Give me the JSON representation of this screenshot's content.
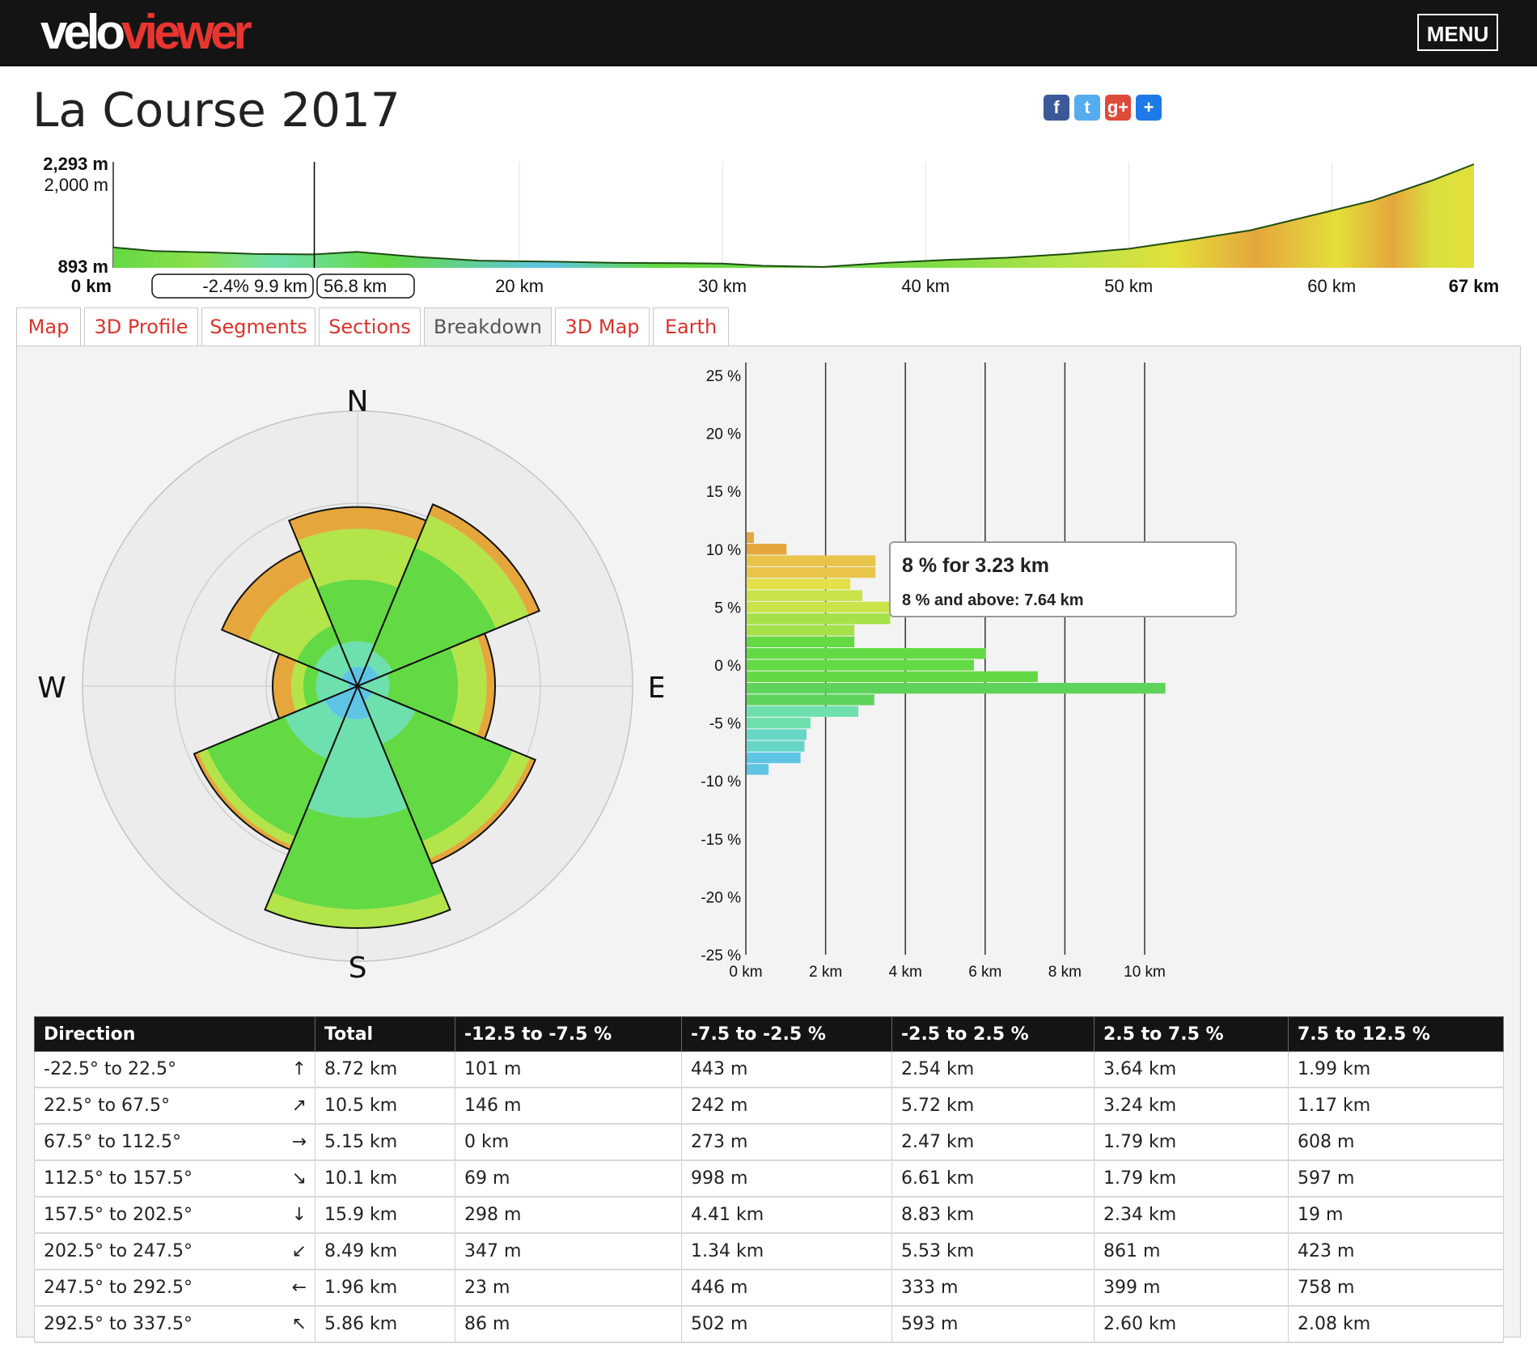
{
  "header": {
    "logo_part1": "velo",
    "logo_part2": "viewer",
    "menu_label": "MENU"
  },
  "page_title": "La Course 2017",
  "share": [
    {
      "name": "facebook-share-button",
      "glyph": "f",
      "color": "#3b5998"
    },
    {
      "name": "twitter-share-button",
      "glyph": "t",
      "color": "#55acee"
    },
    {
      "name": "google-plus-share-button",
      "glyph": "g+",
      "color": "#dd4b39"
    },
    {
      "name": "add-share-button",
      "glyph": "+",
      "color": "#1e7ae6"
    }
  ],
  "profile": {
    "y_max_label": "2,293 m",
    "y_mid_label": "2,000 m",
    "y_min_label": "893 m",
    "x_ticks": [
      "0 km",
      "20 km",
      "30 km",
      "40 km",
      "50 km",
      "60 km",
      "67 km"
    ],
    "selection_left_label": "-2.4% 9.9 km",
    "selection_right_label": "56.8 km",
    "elevation_min": 893,
    "elevation_max": 2293,
    "distance_km": 67,
    "marker_km": 9.9,
    "profile_points": [
      [
        0,
        1170
      ],
      [
        2,
        1120
      ],
      [
        5,
        1100
      ],
      [
        7,
        1080
      ],
      [
        9.9,
        1075
      ],
      [
        12,
        1110
      ],
      [
        15,
        1040
      ],
      [
        18,
        990
      ],
      [
        22,
        975
      ],
      [
        25,
        960
      ],
      [
        28,
        955
      ],
      [
        30,
        950
      ],
      [
        32,
        920
      ],
      [
        35,
        905
      ],
      [
        38,
        960
      ],
      [
        41,
        1000
      ],
      [
        44,
        1030
      ],
      [
        47,
        1080
      ],
      [
        50,
        1150
      ],
      [
        53,
        1270
      ],
      [
        56,
        1400
      ],
      [
        59,
        1600
      ],
      [
        62,
        1800
      ],
      [
        65,
        2080
      ],
      [
        67,
        2293
      ]
    ]
  },
  "tabs": [
    {
      "name": "tab-map",
      "label": "Map",
      "active": false
    },
    {
      "name": "tab-3d-profile",
      "label": "3D Profile",
      "active": false
    },
    {
      "name": "tab-segments",
      "label": "Segments",
      "active": false
    },
    {
      "name": "tab-sections",
      "label": "Sections",
      "active": false
    },
    {
      "name": "tab-breakdown",
      "label": "Breakdown",
      "active": true
    },
    {
      "name": "tab-3d-map",
      "label": "3D Map",
      "active": false
    },
    {
      "name": "tab-earth",
      "label": "Earth",
      "active": false
    }
  ],
  "compass": {
    "n": "N",
    "e": "E",
    "s": "S",
    "w": "W"
  },
  "colors": {
    "steep_down": "#5ec4e6",
    "down": "#6ee0ae",
    "flat": "#63d943",
    "up": "#b3e44a",
    "steep_up": "#e5a63c"
  },
  "chart_data": [
    {
      "type": "polar-bar",
      "description_directions": [
        "N",
        "NE",
        "E",
        "SE",
        "S",
        "SW",
        "W",
        "NW"
      ],
      "series": [
        {
          "name": "-12.5 to -7.5 %",
          "values_km": [
            0.101,
            0.146,
            0,
            0.069,
            0.298,
            0.347,
            0.023,
            0.086
          ]
        },
        {
          "name": "-7.5 to -2.5 %",
          "values_km": [
            0.443,
            0.242,
            0.273,
            0.998,
            4.41,
            1.34,
            0.446,
            0.502
          ]
        },
        {
          "name": "-2.5 to 2.5 %",
          "values_km": [
            2.54,
            5.72,
            2.47,
            6.61,
            8.83,
            5.53,
            0.333,
            0.593
          ]
        },
        {
          "name": "2.5 to 7.5 %",
          "values_km": [
            3.64,
            3.24,
            1.79,
            1.79,
            2.34,
            0.861,
            0.399,
            2.6
          ]
        },
        {
          "name": "7.5 to 12.5 %",
          "values_km": [
            1.99,
            1.17,
            0.608,
            0.597,
            0.019,
            0.423,
            0.758,
            2.08
          ]
        }
      ],
      "totals_km": [
        8.72,
        10.5,
        5.15,
        10.1,
        15.9,
        8.49,
        1.96,
        5.86
      ]
    },
    {
      "type": "bar",
      "orientation": "horizontal",
      "y_ticks": [
        "25 %",
        "20 %",
        "15 %",
        "10 %",
        "5 %",
        "0 %",
        "-5 %",
        "-10 %",
        "-15 %",
        "-20 %",
        "-25 %"
      ],
      "x_ticks": [
        "0 km",
        "2 km",
        "4 km",
        "6 km",
        "8 km",
        "10 km"
      ],
      "ylim": [
        -25,
        25
      ],
      "xlim": [
        0,
        12
      ],
      "gradients": [
        11,
        10,
        9,
        8,
        7,
        6,
        5,
        4,
        3,
        2,
        1,
        0,
        -1,
        -2,
        -3,
        -4,
        -5,
        -6,
        -7,
        -8,
        -9
      ],
      "distances_km": [
        0.18,
        1.0,
        3.23,
        3.23,
        2.6,
        2.9,
        3.6,
        3.6,
        2.7,
        2.7,
        6.0,
        5.7,
        7.3,
        10.5,
        3.2,
        2.8,
        1.6,
        1.5,
        1.45,
        1.35,
        0.55
      ],
      "tooltip_line1": "8 % for 3.23 km",
      "tooltip_line2": "8 % and above: 7.64 km"
    }
  ],
  "table": {
    "headers": [
      "Direction",
      "Total",
      "-12.5 to -7.5 %",
      "-7.5 to -2.5 %",
      "-2.5 to 2.5 %",
      "2.5 to 7.5 %",
      "7.5 to 12.5 %"
    ],
    "rows": [
      {
        "direction": "-22.5° to 22.5°",
        "arrow": "↑",
        "cells": [
          "8.72 km",
          "101 m",
          "443 m",
          "2.54 km",
          "3.64 km",
          "1.99 km"
        ]
      },
      {
        "direction": "22.5° to 67.5°",
        "arrow": "↗",
        "cells": [
          "10.5 km",
          "146 m",
          "242 m",
          "5.72 km",
          "3.24 km",
          "1.17 km"
        ]
      },
      {
        "direction": "67.5° to 112.5°",
        "arrow": "→",
        "cells": [
          "5.15 km",
          "0 km",
          "273 m",
          "2.47 km",
          "1.79 km",
          "608 m"
        ]
      },
      {
        "direction": "112.5° to 157.5°",
        "arrow": "↘",
        "cells": [
          "10.1 km",
          "69 m",
          "998 m",
          "6.61 km",
          "1.79 km",
          "597 m"
        ]
      },
      {
        "direction": "157.5° to 202.5°",
        "arrow": "↓",
        "cells": [
          "15.9 km",
          "298 m",
          "4.41 km",
          "8.83 km",
          "2.34 km",
          "19 m"
        ]
      },
      {
        "direction": "202.5° to 247.5°",
        "arrow": "↙",
        "cells": [
          "8.49 km",
          "347 m",
          "1.34 km",
          "5.53 km",
          "861 m",
          "423 m"
        ]
      },
      {
        "direction": "247.5° to 292.5°",
        "arrow": "←",
        "cells": [
          "1.96 km",
          "23 m",
          "446 m",
          "333 m",
          "399 m",
          "758 m"
        ]
      },
      {
        "direction": "292.5° to 337.5°",
        "arrow": "↖",
        "cells": [
          "5.86 km",
          "86 m",
          "502 m",
          "593 m",
          "2.60 km",
          "2.08 km"
        ]
      }
    ]
  }
}
